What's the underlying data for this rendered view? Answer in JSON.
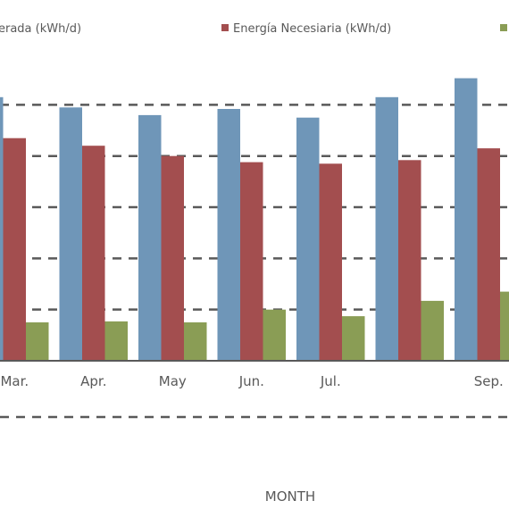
{
  "chart_data": {
    "type": "bar",
    "categories": [
      "Mar.",
      "Apr.",
      "May",
      "Jun.",
      "Jul.",
      "",
      "Sep."
    ],
    "series": [
      {
        "name": "erada (kWh/d)",
        "color": "#6f96b8",
        "values": [
          5.15,
          4.95,
          4.8,
          4.92,
          4.75,
          5.15,
          5.52
        ]
      },
      {
        "name": "Energía Necesiaria (kWh/d)",
        "color": "#a34e4f",
        "values": [
          4.35,
          4.2,
          4.0,
          3.88,
          3.85,
          3.92,
          4.15
        ]
      },
      {
        "name": "",
        "color": "#8a9d55",
        "values": [
          0.75,
          0.77,
          0.75,
          1.0,
          0.87,
          1.17,
          1.35
        ]
      }
    ],
    "xlabel": "MONTH",
    "ylim": [
      0,
      5.6
    ],
    "grid": true,
    "legend_position": "top"
  }
}
